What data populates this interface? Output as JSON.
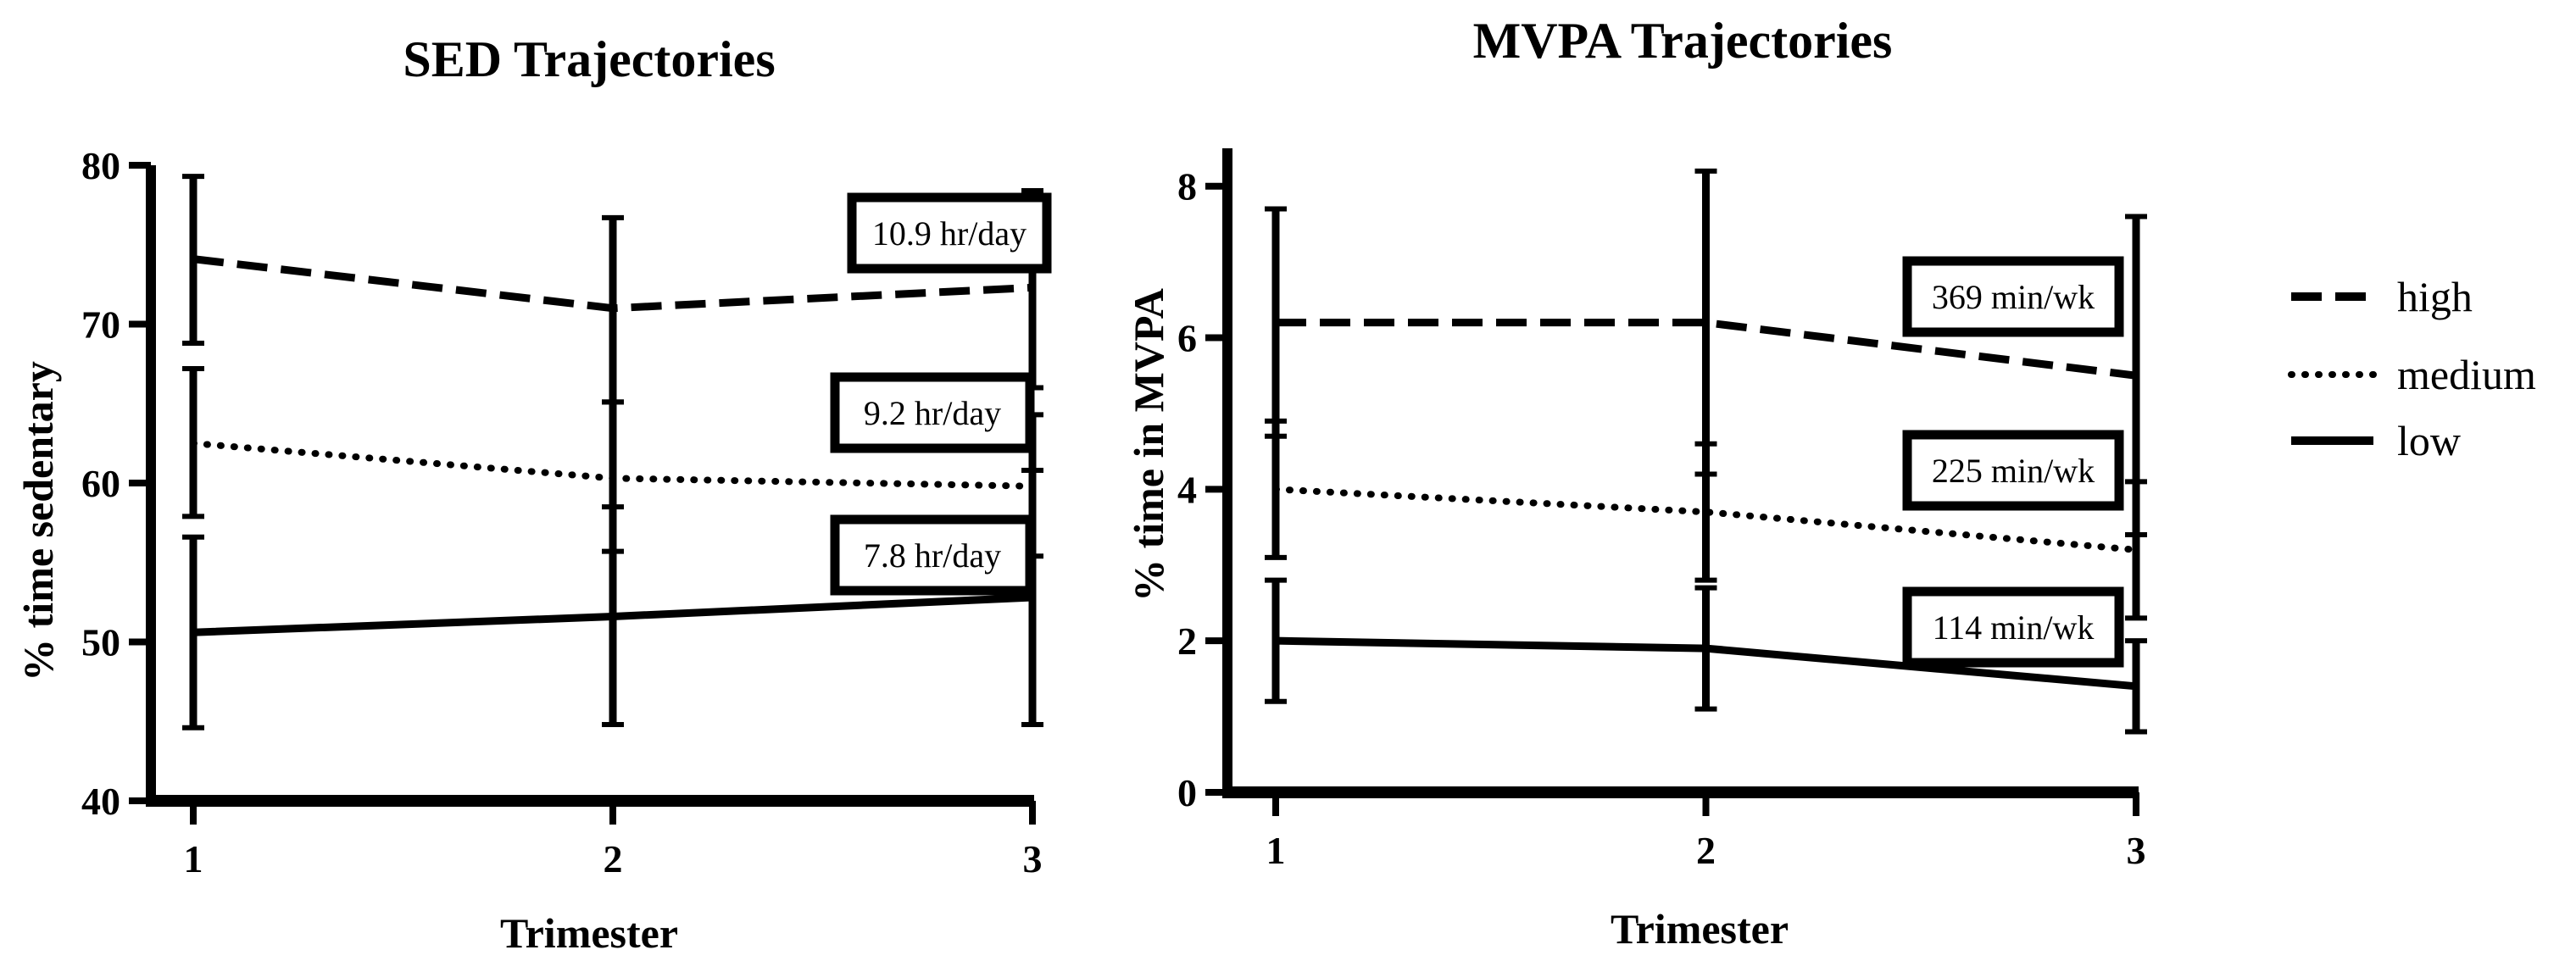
{
  "chart_data": [
    {
      "type": "line",
      "title": "SED Trajectories",
      "xlabel": "Trimester",
      "ylabel": "% time sedentary",
      "x": [
        1,
        2,
        3
      ],
      "xticks": [
        "1",
        "2",
        "3"
      ],
      "ylim": [
        40,
        80
      ],
      "yticks": [
        "40",
        "50",
        "60",
        "70",
        "80"
      ],
      "series": [
        {
          "name": "high",
          "values": [
            74.1,
            71.0,
            72.3
          ],
          "err_low": [
            68.8,
            65.1,
            66.0
          ],
          "err_high": [
            79.3,
            76.7,
            78.4
          ]
        },
        {
          "name": "medium",
          "values": [
            62.5,
            60.3,
            59.8
          ],
          "err_low": [
            57.9,
            55.7,
            55.4
          ],
          "err_high": [
            67.2,
            65.1,
            64.3
          ]
        },
        {
          "name": "low",
          "values": [
            50.6,
            51.6,
            52.8
          ],
          "err_low": [
            44.6,
            44.8,
            44.8
          ],
          "err_high": [
            56.6,
            58.5,
            60.8
          ]
        }
      ],
      "annotations": [
        "10.9 hr/day",
        "9.2 hr/day",
        "7.8 hr/day"
      ]
    },
    {
      "type": "line",
      "title": "MVPA Trajectories",
      "xlabel": "Trimester",
      "ylabel": "% time in MVPA",
      "x": [
        1,
        2,
        3
      ],
      "xticks": [
        "1",
        "2",
        "3"
      ],
      "ylim": [
        0,
        8.5
      ],
      "yticks": [
        "0",
        "2",
        "4",
        "6",
        "8"
      ],
      "series": [
        {
          "name": "high",
          "values": [
            6.2,
            6.2,
            5.5
          ],
          "err_low": [
            4.7,
            4.2,
            3.4
          ],
          "err_high": [
            7.7,
            8.2,
            7.6
          ]
        },
        {
          "name": "medium",
          "values": [
            4.0,
            3.7,
            3.2
          ],
          "err_low": [
            3.1,
            2.8,
            2.3
          ],
          "err_high": [
            4.9,
            4.6,
            4.1
          ]
        },
        {
          "name": "low",
          "values": [
            2.0,
            1.9,
            1.4
          ],
          "err_low": [
            1.2,
            1.1,
            0.8
          ],
          "err_high": [
            2.8,
            2.7,
            2.0
          ]
        }
      ],
      "annotations": [
        "369 min/wk",
        "225 min/wk",
        "114 min/wk"
      ]
    }
  ],
  "legend": {
    "entries": [
      {
        "name": "high",
        "style": "dashed"
      },
      {
        "name": "medium",
        "style": "dotted"
      },
      {
        "name": "low",
        "style": "solid"
      }
    ]
  },
  "colors": {
    "line": "#000000",
    "background": "#ffffff"
  }
}
